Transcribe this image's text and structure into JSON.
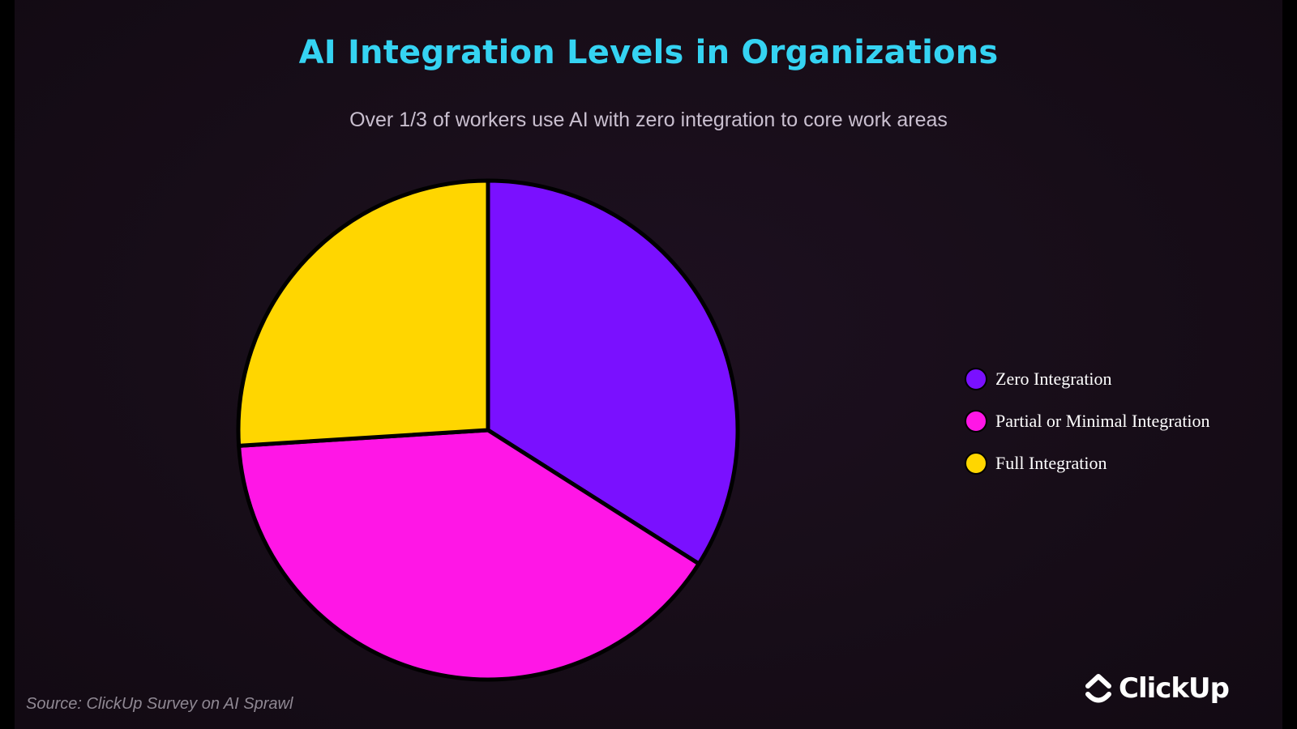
{
  "chart_data": {
    "type": "pie",
    "title": "AI Integration Levels in Organizations",
    "subtitle": "Over 1/3 of workers use AI with zero integration to core work areas",
    "categories": [
      "Zero Integration",
      "Partial or Minimal Integration",
      "Full Integration"
    ],
    "values": [
      34,
      40,
      26
    ],
    "colors": [
      "#7a10ff",
      "#ff16e6",
      "#ffd600"
    ],
    "legend_position": "right"
  },
  "footer": {
    "source": "Source: ClickUp Survey on AI Sprawl",
    "brand": "ClickUp",
    "brand_icon": "clickup-logo-icon"
  }
}
